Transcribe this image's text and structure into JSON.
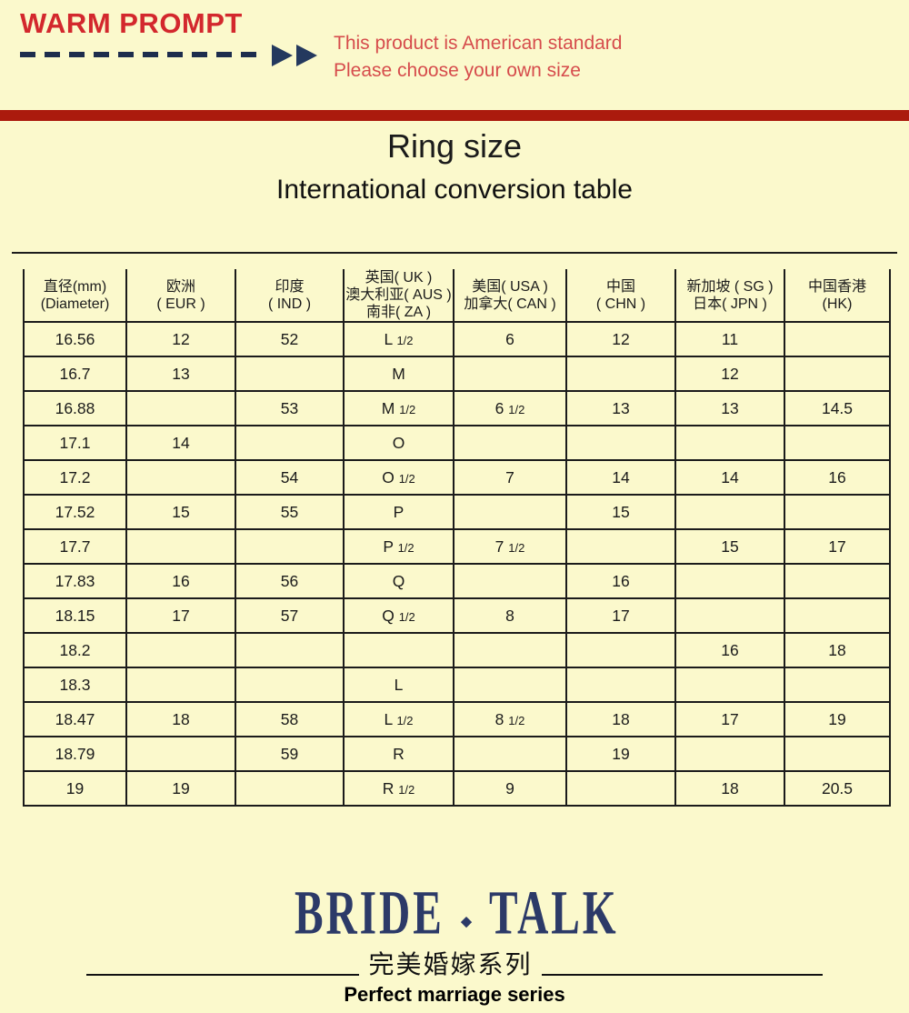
{
  "warm_prompt": {
    "title": "WARM PROMPT",
    "line1": "This product is American standard",
    "line2": "Please choose your own size"
  },
  "titles": {
    "main": "Ring size",
    "subtitle": "International conversion table"
  },
  "table": {
    "headers": [
      {
        "lines": [
          "直径(mm)",
          "(Diameter)"
        ]
      },
      {
        "lines": [
          "欧洲",
          "( EUR )"
        ]
      },
      {
        "lines": [
          "印度",
          "( IND )"
        ]
      },
      {
        "lines": [
          "英国( UK )",
          "澳大利亚( AUS )",
          "南非( ZA )"
        ]
      },
      {
        "lines": [
          "美国( USA )",
          "加拿大( CAN )"
        ]
      },
      {
        "lines": [
          "中国",
          "( CHN )"
        ]
      },
      {
        "lines": [
          "新加坡 ( SG )",
          "日本( JPN )"
        ]
      },
      {
        "lines": [
          "中国香港",
          "(HK)"
        ]
      }
    ],
    "rows": [
      [
        "16.56",
        "12",
        "52",
        "L 1/2",
        "6",
        "12",
        "11",
        ""
      ],
      [
        "16.7",
        "13",
        "",
        "M",
        "",
        "",
        "12",
        ""
      ],
      [
        "16.88",
        "",
        "53",
        "M 1/2",
        "6 1/2",
        "13",
        "13",
        "14.5"
      ],
      [
        "17.1",
        "14",
        "",
        "O",
        "",
        "",
        "",
        ""
      ],
      [
        "17.2",
        "",
        "54",
        "O 1/2",
        "7",
        "14",
        "14",
        "16"
      ],
      [
        "17.52",
        "15",
        "55",
        "P",
        "",
        "15",
        "",
        ""
      ],
      [
        "17.7",
        "",
        "",
        "P 1/2",
        "7 1/2",
        "",
        "15",
        "17"
      ],
      [
        "17.83",
        "16",
        "56",
        "Q",
        "",
        "16",
        "",
        ""
      ],
      [
        "18.15",
        "17",
        "57",
        "Q 1/2",
        "8",
        "17",
        "",
        ""
      ],
      [
        "18.2",
        "",
        "",
        "",
        "",
        "",
        "16",
        "18"
      ],
      [
        "18.3",
        "",
        "",
        "L",
        "",
        "",
        "",
        ""
      ],
      [
        "18.47",
        "18",
        "58",
        "L 1/2",
        "8 1/2",
        "18",
        "17",
        "19"
      ],
      [
        "18.79",
        "",
        "59",
        "R",
        "",
        "19",
        "",
        ""
      ],
      [
        "19",
        "19",
        "",
        "R 1/2",
        "9",
        "",
        "18",
        "20.5"
      ]
    ]
  },
  "brand": {
    "logo_left": "BRIDE",
    "logo_right": "TALK",
    "separator": "◆",
    "chinese": "完美婚嫁系列",
    "english": "Perfect marriage series"
  },
  "colors": {
    "background": "#FBF9CC",
    "warm_prompt_red": "#D3282D",
    "prompt_text_red": "#D64C4C",
    "divider_bar_red": "#AB1A0D",
    "arrow_navy": "#24395E",
    "logo_navy": "#2C3A68",
    "text_black": "#1B1B1B"
  }
}
